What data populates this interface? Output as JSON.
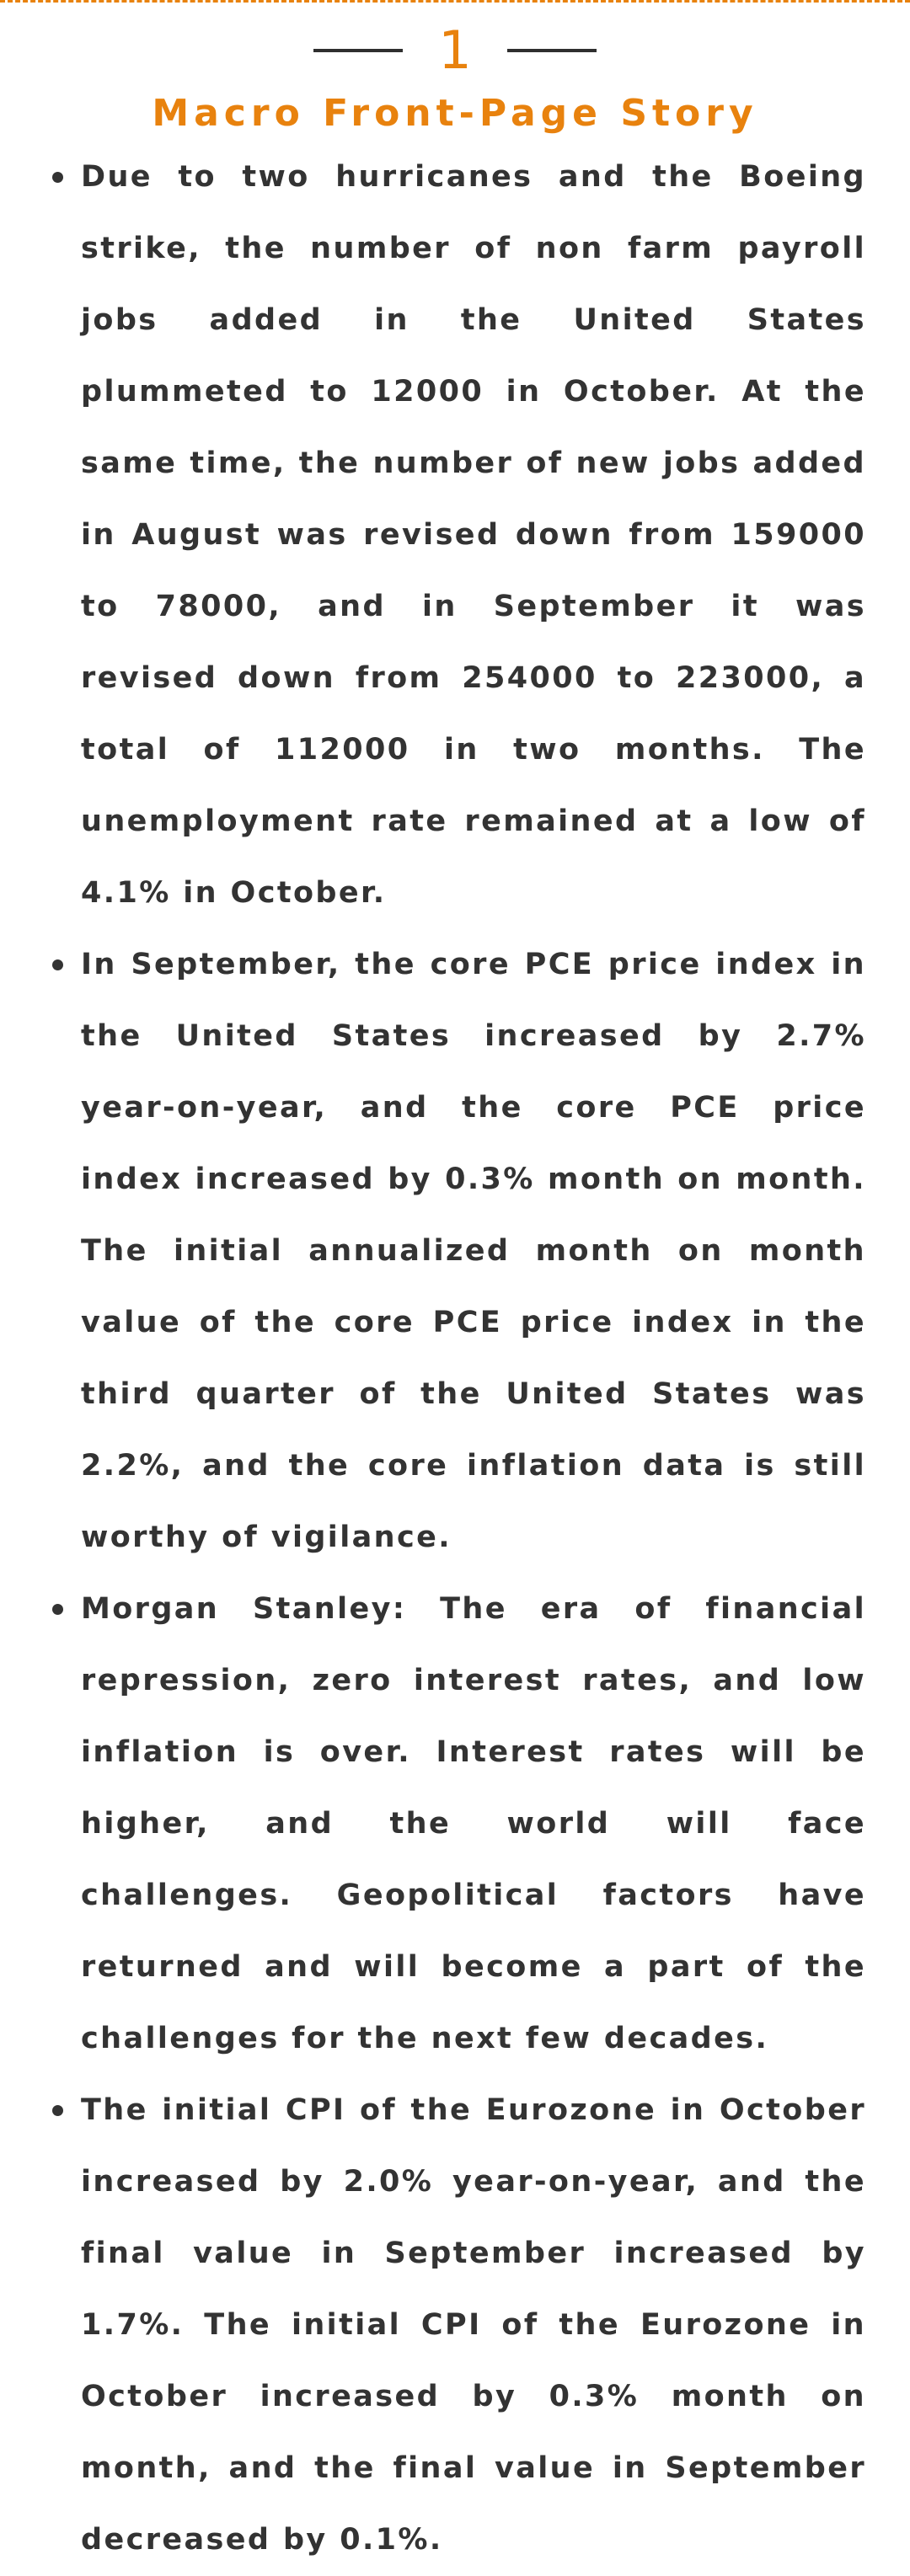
{
  "section": {
    "number": "1",
    "title": "Macro Front-Page Story"
  },
  "bullets": [
    "Due to two hurricanes and the Boeing strike, the number of non farm payroll jobs added in the United States plummeted to 12000 in October. At the same time, the number of new jobs added in August was revised down from 159000 to 78000, and in September it was revised down from 254000 to 223000, a total of 112000 in two months. The unemployment rate remained at a low of 4.1% in October.",
    "In September, the core PCE price index in the United States increased by 2.7% year-on-year, and the core PCE price index increased by 0.3% month on month. The initial annualized month on month value of the core PCE price index in the third quarter of the United States was 2.2%, and the core inflation data is still worthy of vigilance.",
    "Morgan Stanley: The era of financial repression, zero interest rates, and low inflation is over. Interest rates will be higher, and the world will face challenges. Geopolitical factors have returned and will become a part of the challenges for the next few decades.",
    "The initial CPI of the Eurozone in October increased by 2.0% year-on-year, and the final value in September increased by 1.7%. The initial CPI of the Eurozone in October increased by 0.3% month on month, and the final value in September decreased by 0.1%."
  ],
  "colors": {
    "accent": "#e8820e",
    "text": "#333333",
    "background": "#ffffff"
  }
}
